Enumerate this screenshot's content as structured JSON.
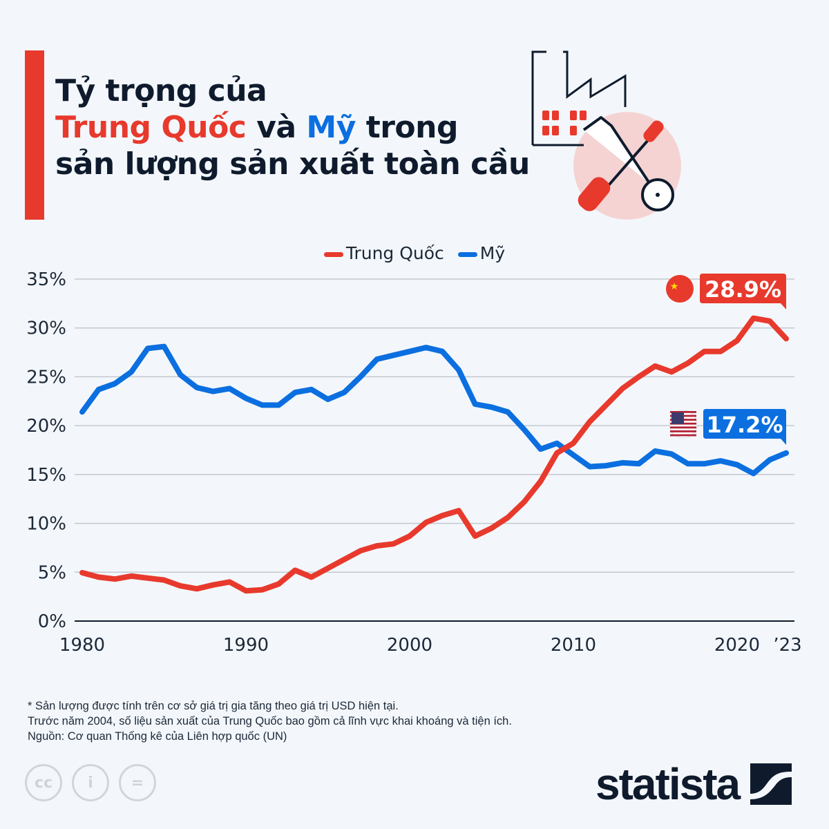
{
  "title": {
    "line1": "Tỷ trọng của",
    "china": "Trung Quốc",
    "and": " và ",
    "us": "Mỹ",
    "line2_end": " trong",
    "line3": "sản lượng sản xuất toàn cầu"
  },
  "colors": {
    "china": "#e8392d",
    "us": "#0b6fe0",
    "accent": "#e8392d",
    "grid": "#c3c8d0"
  },
  "icons": {
    "illustration": "factory-wrench-screwdriver-icon",
    "china_flag": "china-flag-icon",
    "us_flag": "us-flag-icon"
  },
  "chart_data": {
    "type": "line",
    "title": "",
    "xlabel": "",
    "ylabel": "",
    "ylim": [
      0,
      35
    ],
    "xlim": [
      1980,
      2023
    ],
    "yticks": [
      "0%",
      "5%",
      "10%",
      "15%",
      "20%",
      "25%",
      "30%",
      "35%"
    ],
    "xticks": [
      "1980",
      "1990",
      "2000",
      "2010",
      "2020",
      "’23"
    ],
    "grid": true,
    "legend": "top-center",
    "x": [
      1980,
      1981,
      1982,
      1983,
      1984,
      1985,
      1986,
      1987,
      1988,
      1989,
      1990,
      1991,
      1992,
      1993,
      1994,
      1995,
      1996,
      1997,
      1998,
      1999,
      2000,
      2001,
      2002,
      2003,
      2004,
      2005,
      2006,
      2007,
      2008,
      2009,
      2010,
      2011,
      2012,
      2013,
      2014,
      2015,
      2016,
      2017,
      2018,
      2019,
      2020,
      2021,
      2022,
      2023
    ],
    "series": [
      {
        "name": "Trung Quốc",
        "color": "#e8392d",
        "end_label": "28.9%",
        "values": [
          4.95,
          4.5,
          4.3,
          4.6,
          4.4,
          4.2,
          3.6,
          3.3,
          3.7,
          4.0,
          3.1,
          3.2,
          3.8,
          5.2,
          4.5,
          5.4,
          6.3,
          7.2,
          7.7,
          7.9,
          8.7,
          10.1,
          10.8,
          11.3,
          8.7,
          9.5,
          10.6,
          12.2,
          14.3,
          17.2,
          18.2,
          20.4,
          22.1,
          23.8,
          25.0,
          26.1,
          25.5,
          26.4,
          27.6,
          27.6,
          28.7,
          31.0,
          30.7,
          28.9
        ]
      },
      {
        "name": "Mỹ",
        "color": "#0b6fe0",
        "end_label": "17.2%",
        "values": [
          21.4,
          23.7,
          24.3,
          25.5,
          27.9,
          28.1,
          25.2,
          23.9,
          23.5,
          23.8,
          22.8,
          22.1,
          22.1,
          23.4,
          23.7,
          22.7,
          23.4,
          25.0,
          26.8,
          27.2,
          27.6,
          28.0,
          27.6,
          25.7,
          22.2,
          21.9,
          21.4,
          19.6,
          17.6,
          18.2,
          17.0,
          15.8,
          15.9,
          16.2,
          16.1,
          17.4,
          17.1,
          16.1,
          16.1,
          16.4,
          16.0,
          15.1,
          16.5,
          17.2
        ]
      }
    ]
  },
  "notes": [
    "* Sản lượng được tính trên cơ sở giá trị gia tăng theo giá trị USD hiện tại.",
    "Trước năm 2004, số liệu sản xuất của Trung Quốc bao gồm cả lĩnh vực khai khoáng và tiện ích.",
    "Nguồn: Cơ quan Thống kê của Liên hợp quốc (UN)"
  ],
  "license": {
    "cc": "cc",
    "by": "i",
    "nd": "="
  },
  "logo": {
    "text": "statista"
  }
}
